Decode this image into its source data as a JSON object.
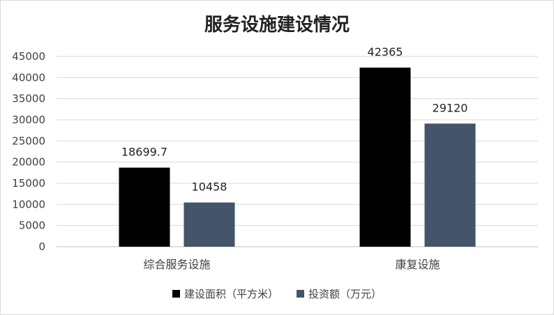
{
  "chart_data": {
    "type": "bar",
    "title": "服务设施建设情况",
    "categories": [
      "综合服务设施",
      "康复设施"
    ],
    "series": [
      {
        "name": "建设面积（平方米）",
        "values": [
          18699.7,
          42365
        ],
        "labels": [
          "18699.7",
          "42365"
        ],
        "color": "#000000"
      },
      {
        "name": "投资额（万元）",
        "values": [
          10458,
          29120
        ],
        "labels": [
          "10458",
          "29120"
        ],
        "color": "#44546a"
      }
    ],
    "yticks": [
      "0",
      "5000",
      "10000",
      "15000",
      "20000",
      "25000",
      "30000",
      "35000",
      "40000",
      "45000"
    ],
    "ylim": [
      0,
      45000
    ],
    "grid": true,
    "legend_position": "bottom"
  }
}
